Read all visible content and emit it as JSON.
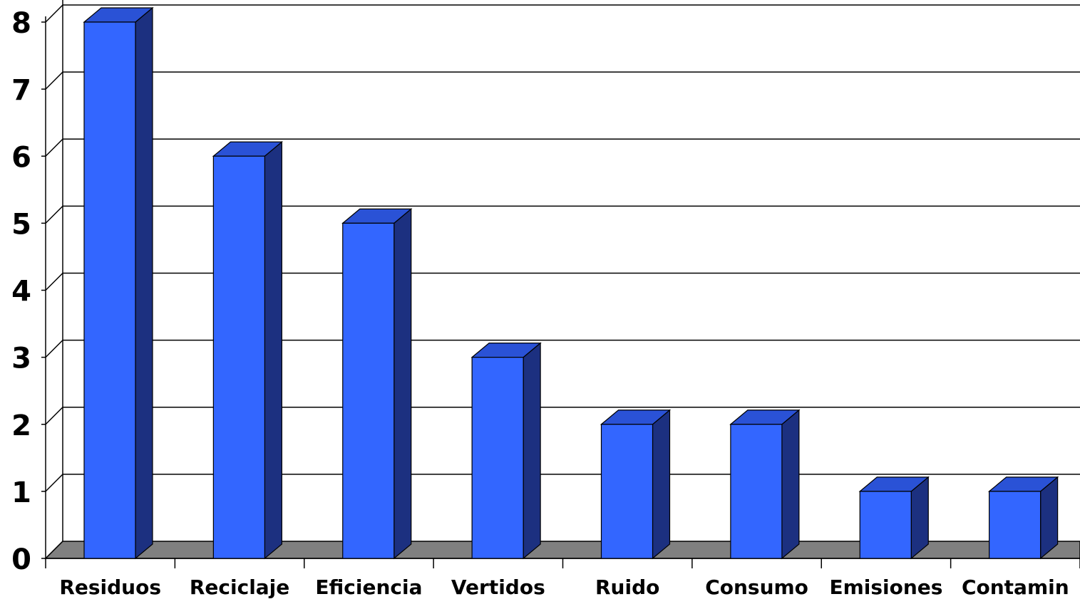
{
  "chart_data": {
    "type": "bar",
    "categories": [
      "Residuos",
      "Reciclaje",
      "Eficiencia",
      "Vertidos",
      "Ruido",
      "Consumo",
      "Emisiones",
      "Contamin"
    ],
    "values": [
      8,
      6,
      5,
      3,
      2,
      2,
      1,
      1
    ],
    "ylim": [
      0,
      8
    ],
    "yticks": [
      0,
      1,
      2,
      3,
      4,
      5,
      6,
      7,
      8
    ],
    "grid": true,
    "legend": "none",
    "colors": {
      "bar_front": "#3366FF",
      "bar_side": "#1C3080",
      "bar_top": "#2A52D6",
      "floor": "#808080",
      "outline": "#000000"
    }
  }
}
